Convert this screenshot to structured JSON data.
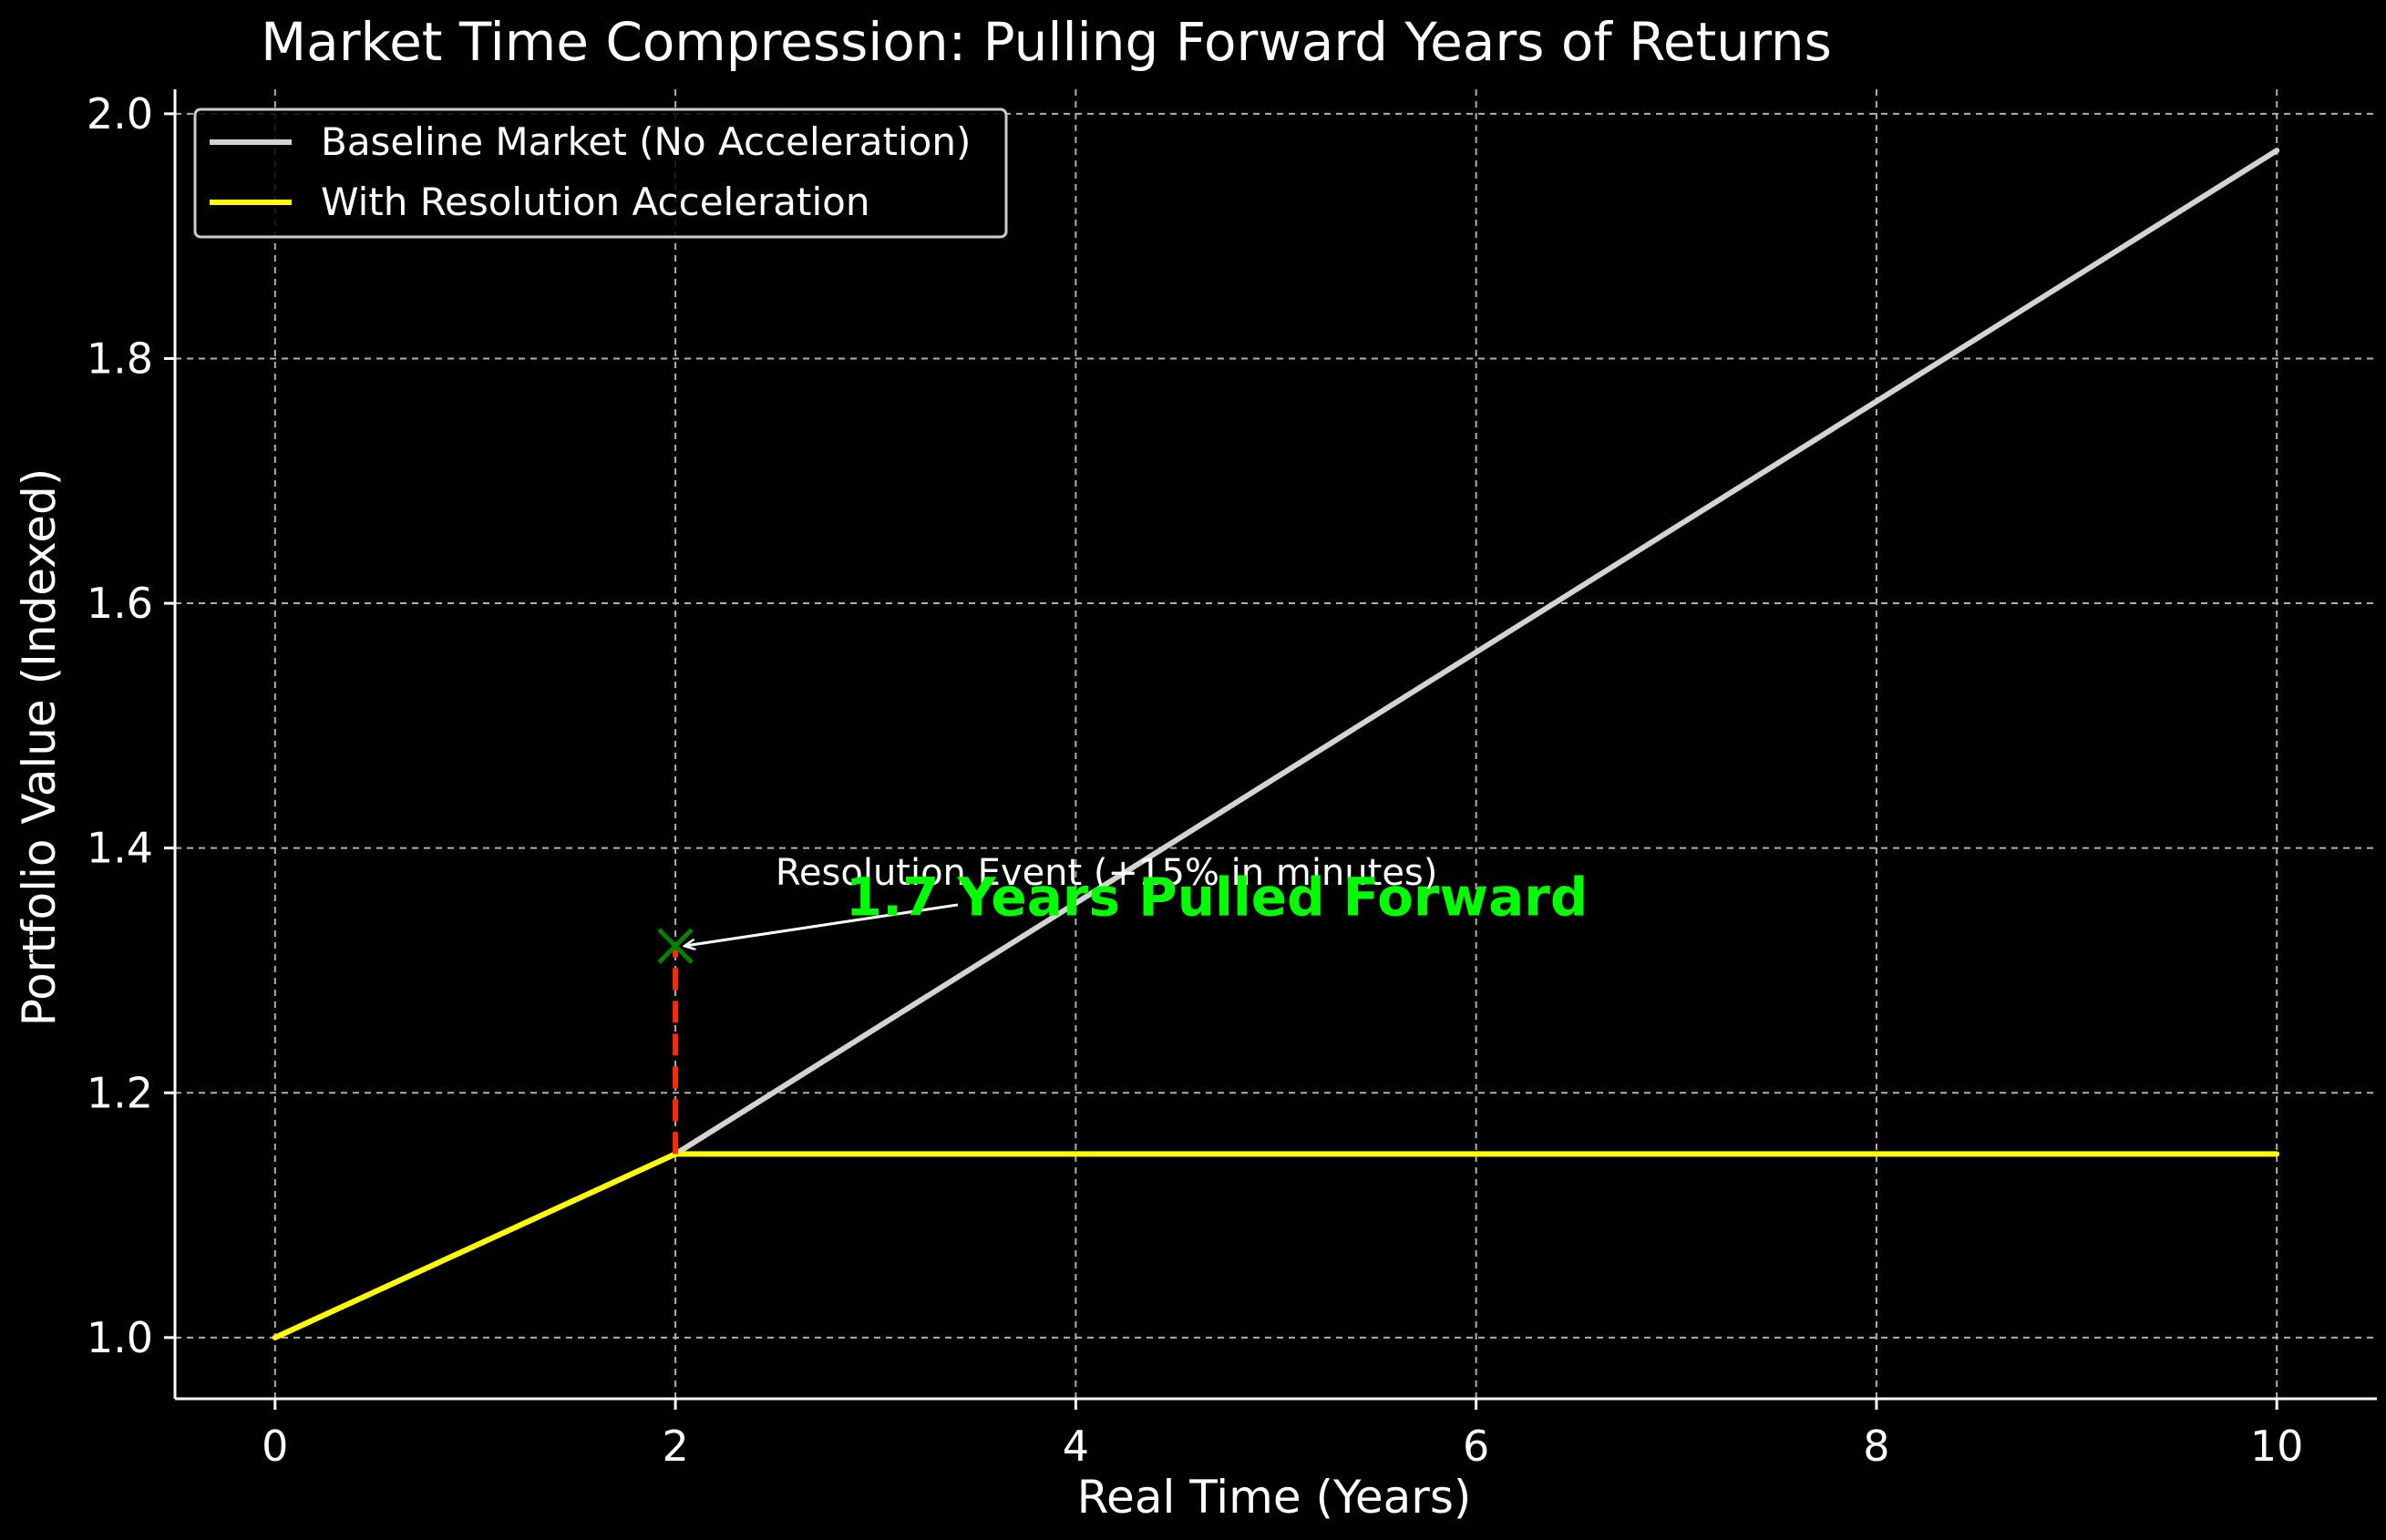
{
  "chart_data": {
    "type": "line",
    "title": "Market Time Compression: Pulling Forward Years of Returns",
    "xlabel": "Real Time (Years)",
    "ylabel": "Portfolio Value (Indexed)",
    "xlim": [
      -0.5,
      10.5
    ],
    "ylim": [
      0.95,
      2.02
    ],
    "xticks": [
      0,
      2,
      4,
      6,
      8,
      10
    ],
    "xtick_labels": [
      "0",
      "2",
      "4",
      "6",
      "8",
      "10"
    ],
    "yticks": [
      1.0,
      1.2,
      1.4,
      1.6,
      1.8,
      2.0
    ],
    "ytick_labels": [
      "1.0",
      "1.2",
      "1.4",
      "1.6",
      "1.8",
      "2.0"
    ],
    "grid": true,
    "legend_position": "top-left",
    "background": "#000000",
    "series": [
      {
        "name": "Baseline Market (No Acceleration)",
        "color": "#d3d3d3",
        "x": [
          0,
          2,
          10
        ],
        "y": [
          1.0,
          1.15,
          1.97
        ]
      },
      {
        "name": "With Resolution Acceleration",
        "color": "#ffff00",
        "x": [
          0,
          2,
          10
        ],
        "y": [
          1.0,
          1.15,
          1.15
        ]
      }
    ],
    "jump": {
      "x": 2,
      "y_from": 1.15,
      "y_to": 1.32,
      "color": "#ff2a00"
    },
    "event_marker": {
      "x": 2,
      "y": 1.32,
      "marker": "x",
      "color": "#008000"
    },
    "annotations": [
      {
        "text": "Resolution Event (+15% in minutes)",
        "x": 2.5,
        "y": 1.37,
        "arrow_to": [
          2,
          1.32
        ],
        "color": "#ffffff"
      },
      {
        "text": "1.7 Years Pulled Forward",
        "x": 2.85,
        "y": 1.345,
        "color": "#00ff00",
        "bold": true
      }
    ]
  }
}
